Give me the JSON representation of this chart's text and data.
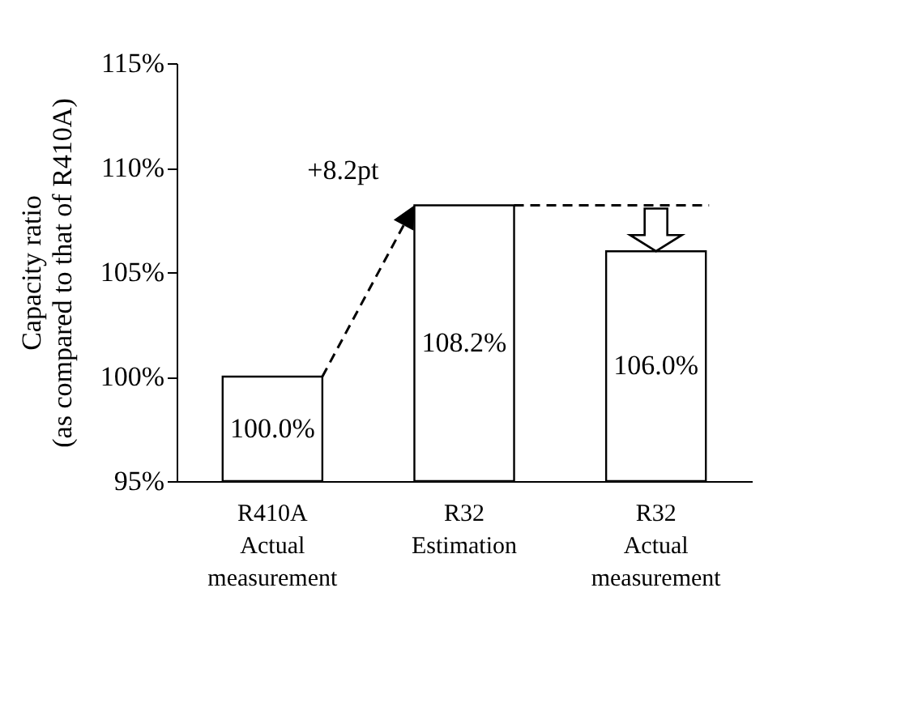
{
  "chart_data": {
    "type": "bar",
    "ylabel": "Capacity ratio\n(as compared to that of R410A)",
    "categories": [
      "R410A Actual measurement",
      "R32 Estimation",
      "R32 Actual measurement"
    ],
    "values": [
      100.0,
      108.2,
      106.0
    ],
    "value_labels": [
      "100.0%",
      "108.2%",
      "106.0%"
    ],
    "color": "#ffffff",
    "ylim": [
      95,
      115
    ],
    "yticks": [
      {
        "value": 95,
        "label": "95%"
      },
      {
        "value": 100,
        "label": "100%"
      },
      {
        "value": 105,
        "label": "105%"
      },
      {
        "value": 110,
        "label": "110%"
      },
      {
        "value": 115,
        "label": "115%"
      }
    ],
    "annotations": [
      "+8.2pt"
    ],
    "grid": false
  }
}
